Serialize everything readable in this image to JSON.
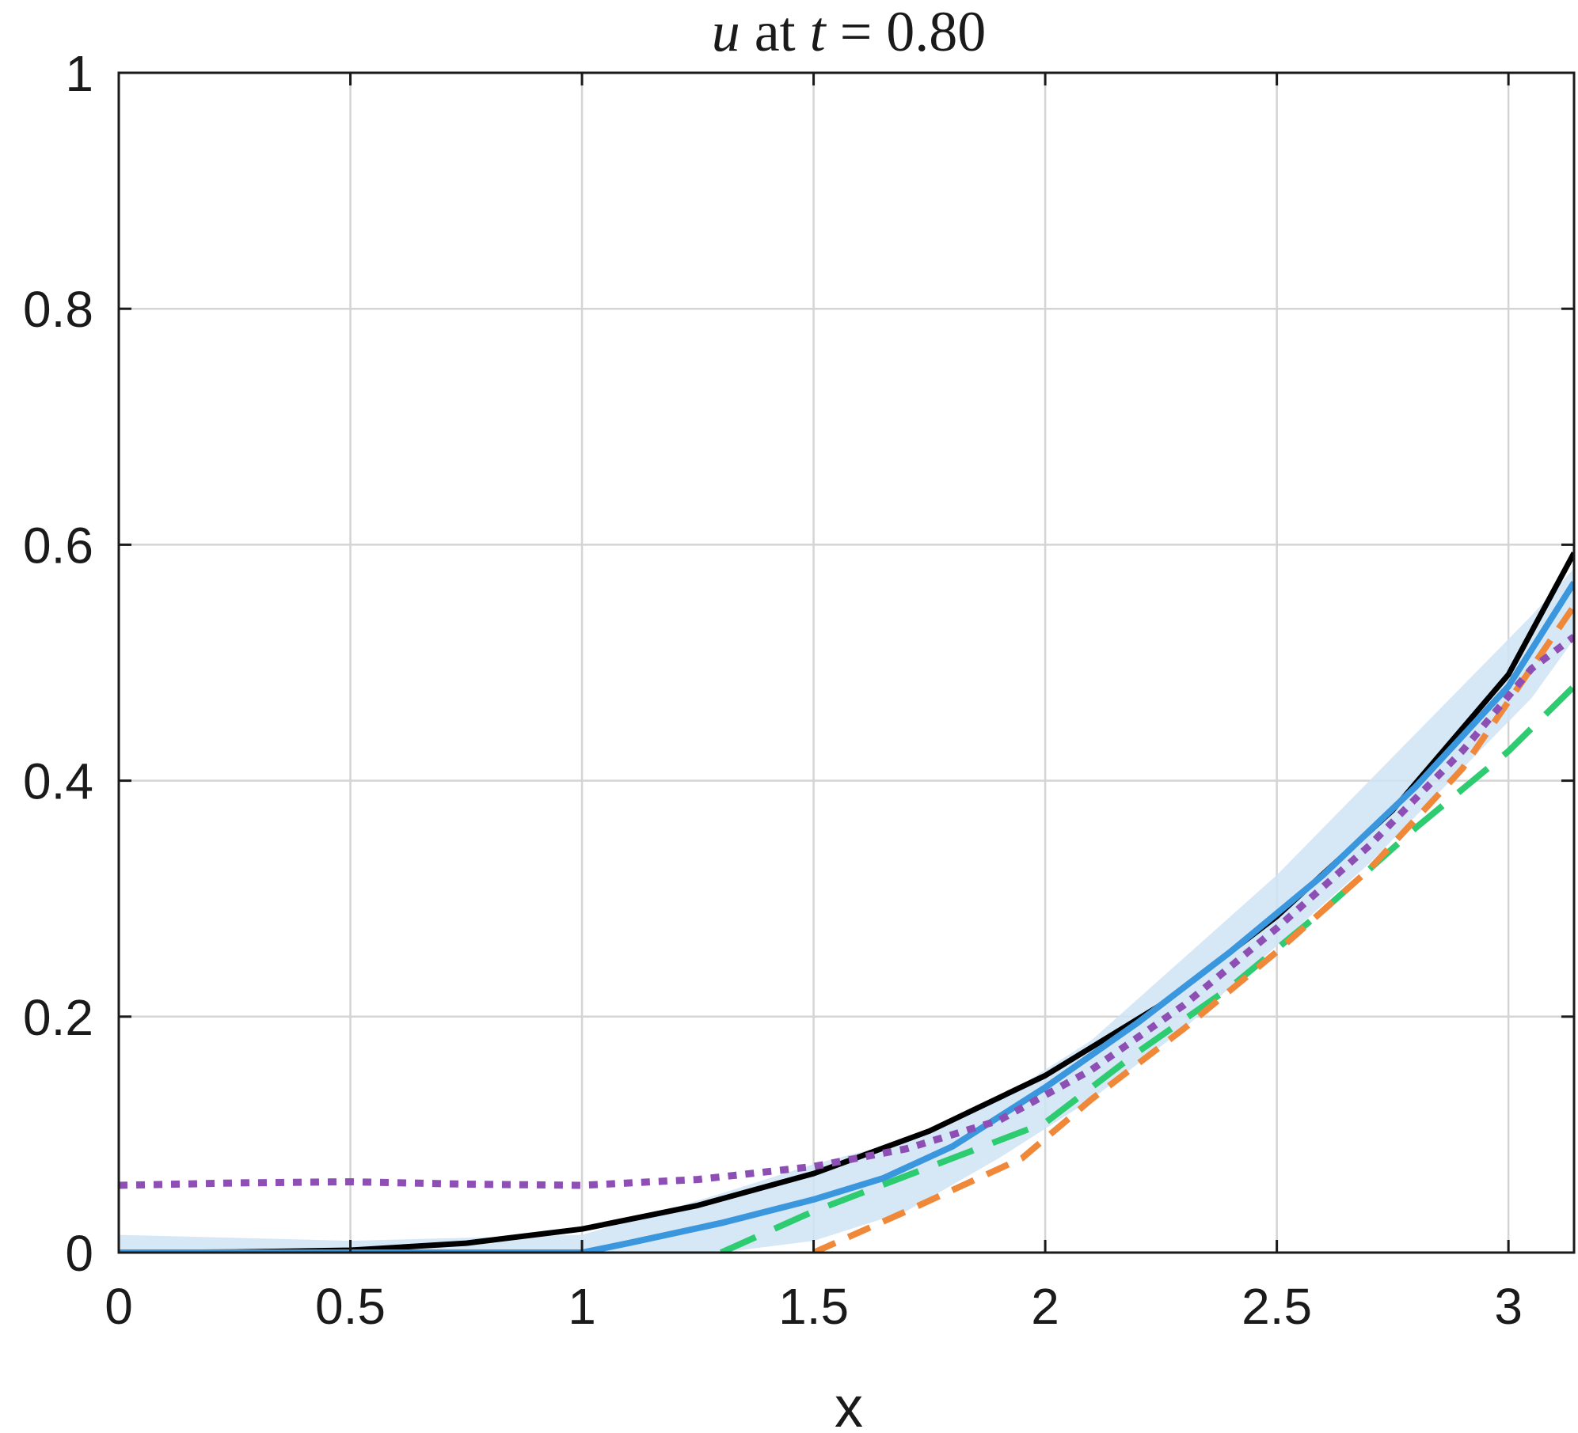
{
  "chart_data": {
    "type": "line",
    "title": {
      "var": "u",
      "mid": " at ",
      "tvar": "t",
      "rest": " = 0.80"
    },
    "xlabel": "x",
    "ylabel": "",
    "xlim": [
      0,
      3.1416
    ],
    "ylim": [
      0,
      1
    ],
    "xticks": [
      0,
      0.5,
      1,
      1.5,
      2,
      2.5,
      3
    ],
    "xtick_labels": [
      "0",
      "0.5",
      "1",
      "1.5",
      "2",
      "2.5",
      "3"
    ],
    "yticks": [
      0,
      0.2,
      0.4,
      0.6,
      0.8,
      1
    ],
    "ytick_labels": [
      "0",
      "0.2",
      "0.4",
      "0.6",
      "0.8",
      "1"
    ],
    "grid": true,
    "band": {
      "color": "#cfe3f5",
      "x": [
        0,
        0.5,
        1.0,
        1.3,
        1.5,
        1.7,
        1.9,
        2.1,
        2.3,
        2.5,
        2.7,
        2.9,
        3.05,
        3.1416
      ],
      "lower": [
        0,
        0,
        0,
        0,
        0.01,
        0.035,
        0.08,
        0.13,
        0.19,
        0.26,
        0.33,
        0.41,
        0.47,
        0.52
      ],
      "upper": [
        0.015,
        0.01,
        0.015,
        0.05,
        0.075,
        0.095,
        0.13,
        0.18,
        0.25,
        0.32,
        0.4,
        0.48,
        0.54,
        0.58
      ]
    },
    "series": [
      {
        "color": "#000000",
        "style": "solid",
        "width": 7,
        "x": [
          0,
          0.25,
          0.5,
          0.75,
          1.0,
          1.25,
          1.5,
          1.75,
          2.0,
          2.25,
          2.5,
          2.75,
          3.0,
          3.1416
        ],
        "y": [
          0,
          0.0005,
          0.002,
          0.008,
          0.02,
          0.04,
          0.067,
          0.103,
          0.15,
          0.21,
          0.285,
          0.375,
          0.49,
          0.593
        ]
      },
      {
        "color": "#3a96dd",
        "style": "solid",
        "width": 8,
        "x": [
          0,
          0.5,
          1.0,
          1.1,
          1.3,
          1.5,
          1.65,
          1.8,
          2.0,
          2.2,
          2.4,
          2.6,
          2.8,
          3.0,
          3.1416
        ],
        "y": [
          0,
          0,
          0,
          0.008,
          0.025,
          0.045,
          0.063,
          0.09,
          0.14,
          0.195,
          0.255,
          0.32,
          0.395,
          0.48,
          0.568
        ]
      },
      {
        "color": "#2ecc71",
        "style": "dashed-long",
        "width": 8,
        "x": [
          1.3,
          1.5,
          1.8,
          2.0,
          2.2,
          2.4,
          2.6,
          2.8,
          3.0,
          3.1416
        ],
        "y": [
          0,
          0.035,
          0.08,
          0.11,
          0.17,
          0.225,
          0.29,
          0.36,
          0.425,
          0.48
        ]
      },
      {
        "color": "#f0883a",
        "style": "dashed",
        "width": 8,
        "x": [
          1.5,
          1.7,
          1.95,
          2.1,
          2.3,
          2.5,
          2.7,
          2.9,
          3.1416
        ],
        "y": [
          0,
          0.035,
          0.08,
          0.13,
          0.19,
          0.255,
          0.325,
          0.41,
          0.548
        ]
      },
      {
        "color": "#8e4fb5",
        "style": "dotted",
        "width": 9,
        "x": [
          0,
          0.25,
          0.5,
          0.75,
          1.0,
          1.25,
          1.5,
          1.7,
          1.9,
          2.1,
          2.3,
          2.5,
          2.7,
          2.9,
          3.05,
          3.1416
        ],
        "y": [
          0.057,
          0.059,
          0.06,
          0.058,
          0.057,
          0.062,
          0.073,
          0.088,
          0.112,
          0.155,
          0.21,
          0.275,
          0.345,
          0.425,
          0.495,
          0.522
        ]
      }
    ]
  }
}
